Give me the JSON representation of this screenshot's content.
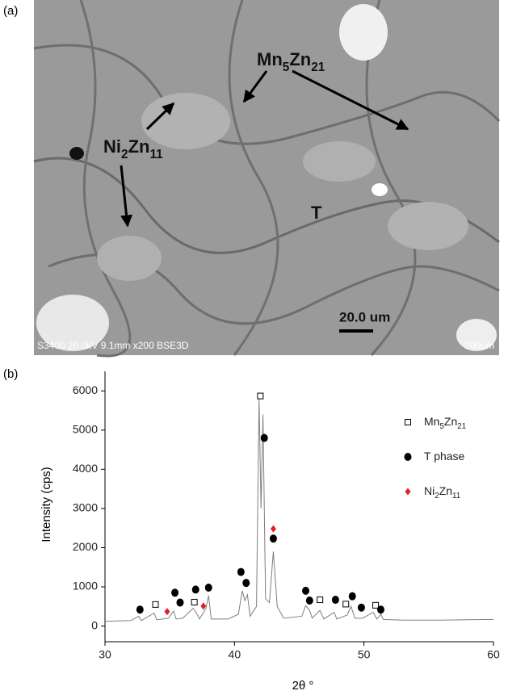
{
  "panel_a": {
    "label": "(a)",
    "mn_label": "Mn5Zn21",
    "ni_label": "Ni2Zn11",
    "t_label": "T",
    "scale_label": "20.0 um",
    "footer_left": "S3400 20.0kV 9.1mm x200 BSE3D",
    "footer_right": "200um"
  },
  "chart_data": {
    "type": "line",
    "panel_label": "(b)",
    "x_label": "2θ °",
    "y_label": "Intensity (cps)",
    "xlim": [
      30,
      60
    ],
    "xticks": [
      30,
      40,
      50,
      60
    ],
    "ylim": [
      -400,
      6500
    ],
    "yticks": [
      0,
      1000,
      2000,
      3000,
      4000,
      5000,
      6000
    ],
    "legend": "upper right",
    "series": [
      {
        "type": "line",
        "color": "#7f7f7f",
        "x": [
          30,
          32,
          32.6,
          32.8,
          33.8,
          34.0,
          34.9,
          35.3,
          35.5,
          36.0,
          36.8,
          37.0,
          37.3,
          37.8,
          38.0,
          38.2,
          39.5,
          40.3,
          40.6,
          40.8,
          41.0,
          41.2,
          41.7,
          41.9,
          42.05,
          42.2,
          42.4,
          42.7,
          43.0,
          43.3,
          43.8,
          45.2,
          45.5,
          45.8,
          46.0,
          46.6,
          46.9,
          47.7,
          47.9,
          48.7,
          49.0,
          49.3,
          49.9,
          50.7,
          51.0,
          51.3,
          51.5,
          53,
          56,
          58,
          60
        ],
        "values": [
          120,
          140,
          250,
          140,
          330,
          160,
          200,
          380,
          180,
          200,
          450,
          370,
          180,
          450,
          780,
          180,
          180,
          300,
          900,
          650,
          800,
          250,
          500,
          5800,
          3000,
          5400,
          700,
          600,
          1900,
          500,
          200,
          250,
          520,
          400,
          200,
          400,
          180,
          350,
          180,
          280,
          500,
          200,
          200,
          350,
          180,
          300,
          170,
          150,
          150,
          160,
          170
        ]
      },
      {
        "type": "scatter",
        "name": "Mn5Zn21",
        "marker": "square",
        "color": "#000000",
        "x": [
          33.9,
          36.9,
          42.0,
          46.6,
          48.6,
          50.9
        ],
        "values": [
          550,
          610,
          5870,
          670,
          560,
          530
        ]
      },
      {
        "type": "scatter",
        "name": "T phase",
        "marker": "circle",
        "color": "#000000",
        "x": [
          32.7,
          35.4,
          35.8,
          37.0,
          38.0,
          40.5,
          40.9,
          42.3,
          43.0,
          45.5,
          45.8,
          47.8,
          49.1,
          49.8,
          51.3
        ],
        "values": [
          420,
          850,
          600,
          930,
          980,
          1380,
          1100,
          4800,
          2230,
          900,
          650,
          670,
          760,
          470,
          420
        ]
      },
      {
        "type": "scatter",
        "name": "Ni2Zn11",
        "marker": "diamond",
        "color": "#e02020",
        "x": [
          34.8,
          37.6,
          43.0
        ],
        "values": [
          370,
          510,
          2480
        ]
      }
    ]
  }
}
